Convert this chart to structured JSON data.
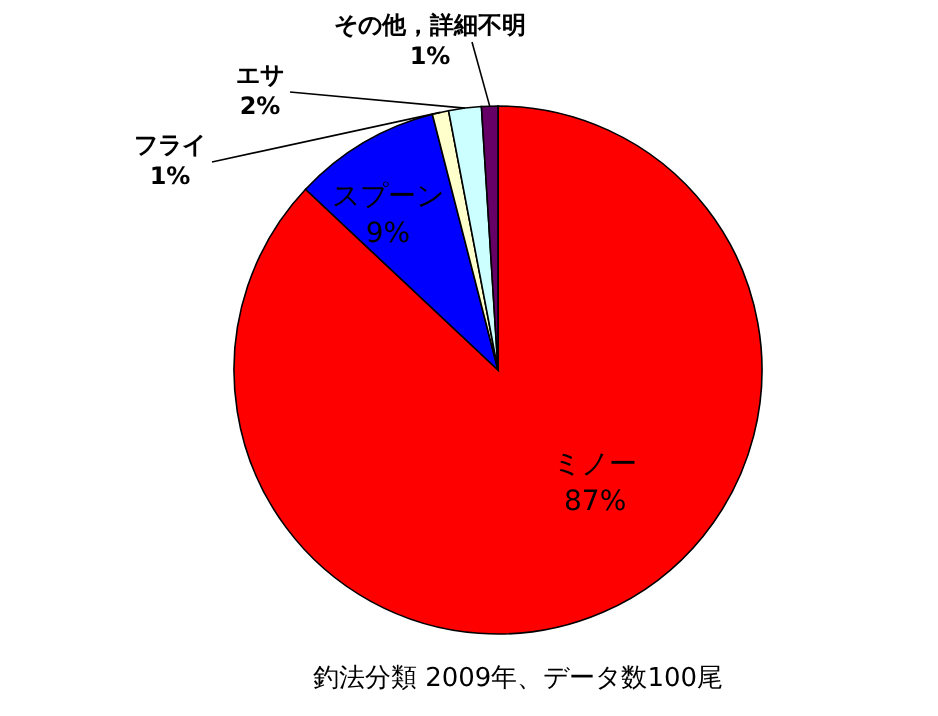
{
  "chart_data": {
    "type": "pie",
    "title": "釣法分類  2009年、データ数100尾",
    "categories": [
      "ミノー",
      "スプーン",
      "フライ",
      "エサ",
      "その他，詳細不明"
    ],
    "values": [
      87,
      9,
      1,
      2,
      1
    ],
    "value_labels": [
      "87%",
      "9%",
      "1%",
      "2%",
      "1%"
    ],
    "colors": [
      "#ff0000",
      "#0000ff",
      "#ffffcc",
      "#ccffff",
      "#660066"
    ]
  }
}
